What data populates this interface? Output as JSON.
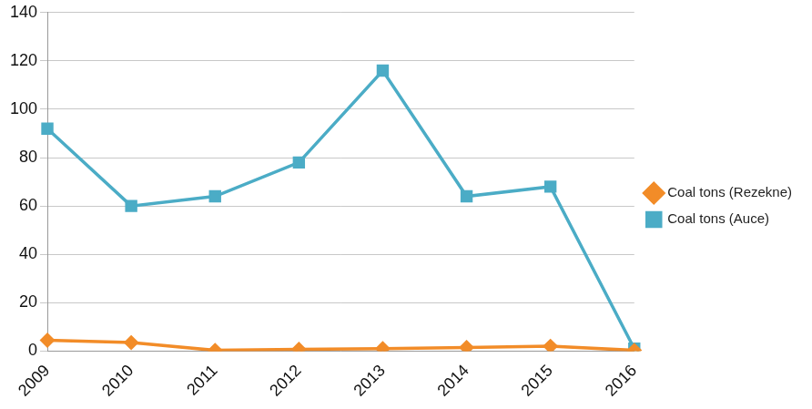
{
  "chart_data": {
    "type": "line",
    "categories": [
      "2009",
      "2010",
      "2011",
      "2012",
      "2013",
      "2014",
      "2015",
      "2016"
    ],
    "series": [
      {
        "name": "Coal tons (Rezekne)",
        "color": "#f28c28",
        "marker": "diamond",
        "values": [
          4.5,
          3.5,
          0.3,
          0.7,
          1,
          1.5,
          2,
          0.3
        ]
      },
      {
        "name": "Coal tons (Auce)",
        "color": "#4bacc6",
        "marker": "square",
        "values": [
          92,
          60,
          64,
          78,
          116,
          64,
          68,
          1
        ]
      }
    ],
    "ylim": [
      0,
      140
    ],
    "yticks": [
      0,
      20,
      40,
      60,
      80,
      100,
      120,
      140
    ],
    "grid": true,
    "legend": "right"
  }
}
